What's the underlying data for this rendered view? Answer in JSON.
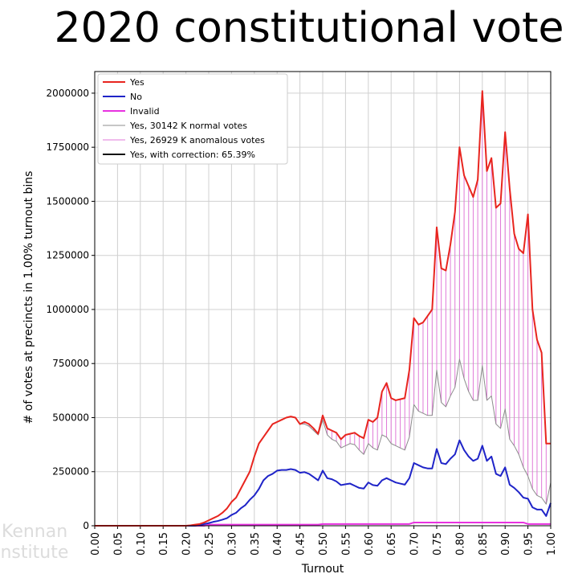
{
  "chart_data": {
    "type": "line",
    "title": "2020 constitutional vote",
    "xlabel": "Turnout",
    "ylabel": "# of votes at precincts in 1.00% turnout bins",
    "watermark": [
      "Kennan",
      "Institute"
    ],
    "xlim": [
      0,
      1
    ],
    "ylim": [
      0,
      2100000
    ],
    "xticks": [
      {
        "value": 0,
        "label": "0.00"
      },
      {
        "value": 0.05,
        "label": "0.05"
      },
      {
        "value": 0.1,
        "label": "0.10"
      },
      {
        "value": 0.15,
        "label": "0.15"
      },
      {
        "value": 0.2,
        "label": "0.20"
      },
      {
        "value": 0.25,
        "label": "0.25"
      },
      {
        "value": 0.3,
        "label": "0.30"
      },
      {
        "value": 0.35,
        "label": "0.35"
      },
      {
        "value": 0.4,
        "label": "0.40"
      },
      {
        "value": 0.45,
        "label": "0.45"
      },
      {
        "value": 0.5,
        "label": "0.50"
      },
      {
        "value": 0.55,
        "label": "0.55"
      },
      {
        "value": 0.6,
        "label": "0.60"
      },
      {
        "value": 0.65,
        "label": "0.65"
      },
      {
        "value": 0.7,
        "label": "0.70"
      },
      {
        "value": 0.75,
        "label": "0.75"
      },
      {
        "value": 0.8,
        "label": "0.80"
      },
      {
        "value": 0.85,
        "label": "0.85"
      },
      {
        "value": 0.9,
        "label": "0.90"
      },
      {
        "value": 0.95,
        "label": "0.95"
      },
      {
        "value": 1,
        "label": "1.00"
      }
    ],
    "yticks": [
      0,
      250000,
      500000,
      750000,
      1000000,
      1250000,
      1500000,
      1750000,
      2000000
    ],
    "grid": true,
    "legend": "upper left",
    "x": [
      0,
      0.01,
      0.02,
      0.03,
      0.04,
      0.05,
      0.06,
      0.07,
      0.08,
      0.09,
      0.1,
      0.11,
      0.12,
      0.13,
      0.14,
      0.15,
      0.16,
      0.17,
      0.18,
      0.19,
      0.2,
      0.21,
      0.22,
      0.23,
      0.24,
      0.25,
      0.26,
      0.27,
      0.28,
      0.29,
      0.3,
      0.31,
      0.32,
      0.33,
      0.34,
      0.35,
      0.36,
      0.37,
      0.38,
      0.39,
      0.4,
      0.41,
      0.42,
      0.43,
      0.44,
      0.45,
      0.46,
      0.47,
      0.48,
      0.49,
      0.5,
      0.51,
      0.52,
      0.53,
      0.54,
      0.55,
      0.56,
      0.57,
      0.58,
      0.59,
      0.6,
      0.61,
      0.62,
      0.63,
      0.64,
      0.65,
      0.66,
      0.67,
      0.68,
      0.69,
      0.7,
      0.71,
      0.72,
      0.73,
      0.74,
      0.75,
      0.76,
      0.77,
      0.78,
      0.79,
      0.8,
      0.81,
      0.82,
      0.83,
      0.84,
      0.85,
      0.86,
      0.87,
      0.88,
      0.89,
      0.9,
      0.91,
      0.92,
      0.93,
      0.94,
      0.95,
      0.96,
      0.97,
      0.98,
      0.99,
      1
    ],
    "series": [
      {
        "name": "Yes",
        "color": "#e8251f",
        "width": 2,
        "values": [
          0,
          0,
          0,
          0,
          0,
          0,
          0,
          0,
          0,
          0,
          0,
          0,
          0,
          0,
          0,
          0,
          0,
          0,
          0,
          0,
          0,
          2000,
          5000,
          8000,
          15000,
          25000,
          35000,
          45000,
          60000,
          80000,
          110000,
          130000,
          170000,
          210000,
          250000,
          320000,
          380000,
          410000,
          440000,
          470000,
          480000,
          490000,
          500000,
          505000,
          500000,
          470000,
          480000,
          470000,
          450000,
          425000,
          510000,
          450000,
          440000,
          430000,
          400000,
          420000,
          425000,
          430000,
          415000,
          405000,
          490000,
          480000,
          500000,
          620000,
          660000,
          590000,
          580000,
          585000,
          590000,
          720000,
          960000,
          930000,
          940000,
          970000,
          1000000,
          1380000,
          1190000,
          1180000,
          1300000,
          1450000,
          1750000,
          1620000,
          1570000,
          1520000,
          1600000,
          2010000,
          1640000,
          1700000,
          1470000,
          1490000,
          1820000,
          1560000,
          1350000,
          1280000,
          1260000,
          1440000,
          1000000,
          860000,
          800000,
          380000,
          380000
        ]
      },
      {
        "name": "No",
        "color": "#1f24c8",
        "width": 2,
        "values": [
          0,
          0,
          0,
          0,
          0,
          0,
          0,
          0,
          0,
          0,
          0,
          0,
          0,
          0,
          0,
          0,
          0,
          0,
          0,
          0,
          0,
          0,
          0,
          3000,
          8000,
          12000,
          18000,
          22000,
          28000,
          35000,
          50000,
          60000,
          80000,
          95000,
          120000,
          140000,
          170000,
          210000,
          230000,
          240000,
          255000,
          258000,
          258000,
          262000,
          258000,
          245000,
          248000,
          240000,
          225000,
          210000,
          255000,
          220000,
          215000,
          205000,
          188000,
          192000,
          195000,
          185000,
          175000,
          172000,
          200000,
          188000,
          185000,
          210000,
          220000,
          210000,
          200000,
          195000,
          190000,
          220000,
          290000,
          280000,
          270000,
          265000,
          265000,
          355000,
          290000,
          285000,
          310000,
          330000,
          395000,
          350000,
          320000,
          300000,
          310000,
          370000,
          300000,
          320000,
          240000,
          230000,
          270000,
          190000,
          175000,
          155000,
          130000,
          125000,
          85000,
          75000,
          75000,
          45000,
          105000
        ]
      },
      {
        "name": "Invalid",
        "color": "#e832e0",
        "width": 2,
        "values": [
          0,
          0,
          0,
          0,
          0,
          0,
          0,
          0,
          0,
          0,
          0,
          0,
          0,
          0,
          0,
          0,
          0,
          0,
          0,
          0,
          0,
          0,
          0,
          0,
          0,
          5000,
          5000,
          5000,
          5000,
          5000,
          5000,
          5000,
          5000,
          5000,
          5000,
          5000,
          5000,
          5000,
          5000,
          5000,
          5000,
          5000,
          5000,
          5000,
          5000,
          5000,
          5000,
          5000,
          5000,
          5000,
          8000,
          8000,
          8000,
          8000,
          8000,
          8000,
          8000,
          8000,
          8000,
          8000,
          8000,
          8000,
          8000,
          8000,
          8000,
          8000,
          8000,
          8000,
          8000,
          8000,
          15000,
          15000,
          15000,
          15000,
          15000,
          15000,
          15000,
          15000,
          15000,
          15000,
          15000,
          15000,
          15000,
          15000,
          15000,
          15000,
          15000,
          15000,
          15000,
          15000,
          15000,
          15000,
          15000,
          15000,
          15000,
          8000,
          8000,
          8000,
          8000,
          8000,
          8000
        ]
      },
      {
        "name": "Yes, 30142 K normal votes",
        "color": "#8c8c8c",
        "width": 1,
        "values": [
          0,
          0,
          0,
          0,
          0,
          0,
          0,
          0,
          0,
          0,
          0,
          0,
          0,
          0,
          0,
          0,
          0,
          0,
          0,
          0,
          0,
          2000,
          5000,
          8000,
          15000,
          25000,
          35000,
          45000,
          60000,
          80000,
          110000,
          130000,
          170000,
          210000,
          250000,
          320000,
          380000,
          410000,
          440000,
          470000,
          480000,
          490000,
          500000,
          505000,
          500000,
          470000,
          470000,
          460000,
          440000,
          420000,
          490000,
          420000,
          400000,
          390000,
          360000,
          370000,
          380000,
          375000,
          350000,
          330000,
          380000,
          360000,
          350000,
          420000,
          410000,
          380000,
          370000,
          360000,
          350000,
          410000,
          560000,
          530000,
          520000,
          510000,
          510000,
          720000,
          570000,
          550000,
          600000,
          640000,
          770000,
          680000,
          620000,
          580000,
          580000,
          740000,
          580000,
          600000,
          470000,
          450000,
          540000,
          400000,
          370000,
          330000,
          270000,
          230000,
          170000,
          140000,
          130000,
          100000,
          200000
        ]
      },
      {
        "name": "Yes, 26929 K anomalous votes",
        "color": "#e07ad8",
        "width": 1,
        "stacked_on": 3,
        "values": [
          0,
          0,
          0,
          0,
          0,
          0,
          0,
          0,
          0,
          0,
          0,
          0,
          0,
          0,
          0,
          0,
          0,
          0,
          0,
          0,
          0,
          0,
          0,
          0,
          0,
          0,
          0,
          0,
          0,
          0,
          0,
          0,
          0,
          0,
          0,
          0,
          0,
          0,
          0,
          0,
          0,
          0,
          0,
          0,
          0,
          0,
          10000,
          10000,
          10000,
          5000,
          20000,
          30000,
          40000,
          40000,
          40000,
          50000,
          45000,
          55000,
          65000,
          75000,
          110000,
          120000,
          150000,
          200000,
          250000,
          210000,
          210000,
          225000,
          240000,
          310000,
          400000,
          400000,
          420000,
          460000,
          490000,
          660000,
          620000,
          630000,
          700000,
          810000,
          980000,
          940000,
          950000,
          940000,
          1020000,
          1270000,
          1060000,
          1100000,
          1000000,
          1040000,
          1280000,
          1160000,
          980000,
          950000,
          990000,
          1210000,
          830000,
          720000,
          670000,
          280000,
          180000
        ]
      },
      {
        "name": "Yes, with correction: 65.39%",
        "color": "#111111",
        "width": 2,
        "values": [
          null,
          null,
          null,
          null,
          null,
          null,
          null,
          null,
          null,
          null,
          null,
          null,
          null,
          null,
          null,
          null,
          null,
          null,
          null,
          null,
          null,
          null,
          null,
          null,
          null,
          null,
          null,
          null,
          null,
          null,
          null,
          null,
          null,
          null,
          null,
          null,
          null,
          null,
          null,
          null,
          null,
          null,
          null,
          null,
          null,
          null,
          null,
          null,
          null,
          null,
          null,
          null,
          null,
          null,
          null,
          null,
          null,
          null,
          null,
          null,
          null,
          null,
          null,
          null,
          null,
          null,
          null,
          null,
          null,
          null,
          null,
          null,
          null,
          null,
          null,
          null,
          null,
          null,
          null,
          null,
          null,
          null,
          null,
          null,
          null,
          null,
          null,
          null,
          null,
          null,
          null,
          null,
          null,
          null,
          null,
          null,
          null,
          null,
          null,
          null,
          null
        ]
      }
    ]
  }
}
